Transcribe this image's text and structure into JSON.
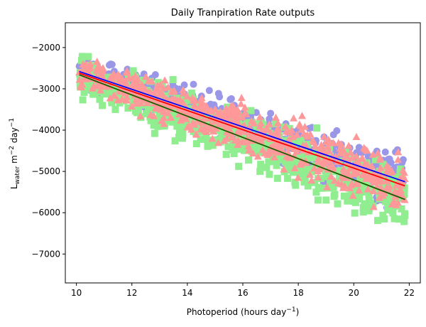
{
  "chart_data": {
    "type": "scatter",
    "title": "Daily Tranpiration Rate outputs",
    "xlabel": "Photoperiod (hours day",
    "xlabel_sup": "−1",
    "xlabel_close": ")",
    "ylabel_main": "L",
    "ylabel_sub": "water",
    "ylabel_mid": " m",
    "ylabel_sup1": "−2",
    "ylabel_day": " day",
    "ylabel_sup2": "−1",
    "xlim": [
      9.6,
      22.4
    ],
    "ylim": [
      -7700,
      -1400
    ],
    "x_ticks": [
      10,
      12,
      14,
      16,
      18,
      20,
      22
    ],
    "y_ticks": [
      -7000,
      -6000,
      -5000,
      -4000,
      -3000,
      -2000
    ],
    "x_tick_labels": [
      "10",
      "12",
      "14",
      "16",
      "18",
      "20",
      "22"
    ],
    "y_tick_labels": [
      "−7000",
      "−6000",
      "−5000",
      "−4000",
      "−3000",
      "−2000"
    ],
    "grid": false,
    "legend": "none",
    "series": [
      {
        "marker": "circle",
        "color": "#9b97e8",
        "x_range": [
          10.1,
          21.85
        ],
        "y_start": -2550,
        "y_end": -5250,
        "spread": 900
      },
      {
        "marker": "square",
        "color": "#90ee90",
        "x_range": [
          10.1,
          21.85
        ],
        "y_start": -2700,
        "y_end": -5700,
        "spread": 1100
      },
      {
        "marker": "triangle",
        "color": "#ff9999",
        "x_range": [
          10.1,
          21.85
        ],
        "y_start": -2580,
        "y_end": -5350,
        "spread": 950
      }
    ],
    "trend_lines": [
      {
        "color": "#0000ff",
        "x": [
          10.1,
          21.85
        ],
        "y": [
          -2580,
          -5250
        ]
      },
      {
        "color": "#ff0000",
        "x": [
          10.1,
          21.85
        ],
        "y": [
          -2620,
          -5350
        ]
      },
      {
        "color": "#1a5c00",
        "x": [
          10.1,
          21.85
        ],
        "y": [
          -2660,
          -5680
        ]
      }
    ]
  }
}
